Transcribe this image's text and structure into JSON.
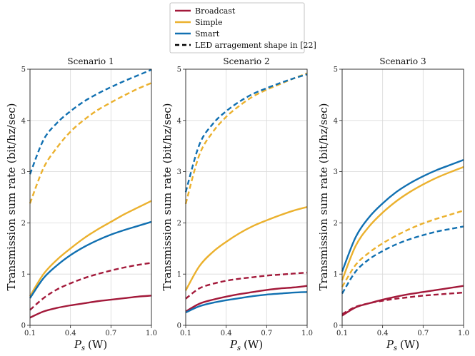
{
  "chart_data": {
    "type": "line",
    "legend": {
      "placement": "top-center",
      "entries": [
        {
          "label": "Broadcast",
          "color": "#A3193A",
          "dash": "solid"
        },
        {
          "label": "Simple",
          "color": "#EBB12E",
          "dash": "solid"
        },
        {
          "label": "Smart",
          "color": "#1170B1",
          "dash": "solid"
        },
        {
          "label": "LED arragement shape in [22]",
          "color": "#000000",
          "dash": "dashed"
        }
      ]
    },
    "shared": {
      "xlabel": "P_s (W)",
      "xlabel_main": "P",
      "xlabel_sub": "s",
      "xlabel_unit": "(W)",
      "ylabel": "Transmission sum rate (bit/hz/sec)",
      "xlim": [
        0.1,
        1.0
      ],
      "ylim": [
        0,
        5
      ],
      "xticks": [
        "0.1",
        "0.4",
        "0.7",
        "1.0"
      ],
      "yticks": [
        "0",
        "1",
        "2",
        "3",
        "4",
        "5"
      ],
      "x": [
        0.1,
        0.2,
        0.3,
        0.4,
        0.5,
        0.6,
        0.7,
        0.8,
        0.9,
        1.0
      ],
      "grid": true
    },
    "panels": [
      {
        "title": "Scenario 1",
        "series": [
          {
            "name": "Broadcast",
            "color": "#A3193A",
            "dash": "solid",
            "values": [
              0.15,
              0.27,
              0.34,
              0.39,
              0.43,
              0.47,
              0.5,
              0.53,
              0.56,
              0.58
            ]
          },
          {
            "name": "Broadcast (LED arrangement [22])",
            "color": "#A3193A",
            "dash": "dashed",
            "values": [
              0.3,
              0.53,
              0.7,
              0.82,
              0.92,
              1.0,
              1.07,
              1.13,
              1.18,
              1.22
            ]
          },
          {
            "name": "Simple",
            "color": "#EBB12E",
            "dash": "solid",
            "values": [
              0.57,
              1.0,
              1.28,
              1.5,
              1.7,
              1.87,
              2.02,
              2.17,
              2.3,
              2.43
            ]
          },
          {
            "name": "Simple (LED arrangement [22])",
            "color": "#EBB12E",
            "dash": "dashed",
            "values": [
              2.38,
              3.07,
              3.47,
              3.78,
              4.01,
              4.2,
              4.35,
              4.49,
              4.62,
              4.73
            ]
          },
          {
            "name": "Smart",
            "color": "#1170B1",
            "dash": "solid",
            "values": [
              0.53,
              0.92,
              1.17,
              1.37,
              1.53,
              1.66,
              1.77,
              1.86,
              1.94,
              2.02
            ]
          },
          {
            "name": "Smart (LED arrangement [22])",
            "color": "#1170B1",
            "dash": "dashed",
            "values": [
              2.95,
              3.62,
              3.95,
              4.18,
              4.37,
              4.52,
              4.65,
              4.77,
              4.88,
              4.99
            ]
          }
        ]
      },
      {
        "title": "Scenario 2",
        "series": [
          {
            "name": "Broadcast",
            "color": "#A3193A",
            "dash": "solid",
            "values": [
              0.27,
              0.42,
              0.5,
              0.56,
              0.61,
              0.65,
              0.69,
              0.72,
              0.74,
              0.77
            ]
          },
          {
            "name": "Broadcast (LED arrangement [22])",
            "color": "#A3193A",
            "dash": "dashed",
            "values": [
              0.52,
              0.72,
              0.81,
              0.87,
              0.91,
              0.94,
              0.97,
              0.99,
              1.01,
              1.03
            ]
          },
          {
            "name": "Simple",
            "color": "#EBB12E",
            "dash": "solid",
            "values": [
              0.68,
              1.15,
              1.43,
              1.63,
              1.8,
              1.94,
              2.05,
              2.15,
              2.24,
              2.31
            ]
          },
          {
            "name": "Simple (LED arrangement [22])",
            "color": "#EBB12E",
            "dash": "dashed",
            "values": [
              2.37,
              3.32,
              3.77,
              4.07,
              4.29,
              4.47,
              4.6,
              4.71,
              4.82,
              4.92
            ]
          },
          {
            "name": "Smart",
            "color": "#1170B1",
            "dash": "solid",
            "values": [
              0.25,
              0.37,
              0.44,
              0.49,
              0.53,
              0.57,
              0.6,
              0.62,
              0.64,
              0.65
            ]
          },
          {
            "name": "Smart (LED arrangement [22])",
            "color": "#1170B1",
            "dash": "dashed",
            "values": [
              2.6,
              3.52,
              3.93,
              4.18,
              4.37,
              4.52,
              4.63,
              4.73,
              4.82,
              4.9
            ]
          }
        ]
      },
      {
        "title": "Scenario 3",
        "series": [
          {
            "name": "Broadcast",
            "color": "#A3193A",
            "dash": "solid",
            "values": [
              0.19,
              0.35,
              0.43,
              0.5,
              0.56,
              0.61,
              0.65,
              0.69,
              0.73,
              0.77
            ]
          },
          {
            "name": "Broadcast (LED arrangement [22])",
            "color": "#A3193A",
            "dash": "dashed",
            "values": [
              0.22,
              0.36,
              0.43,
              0.48,
              0.52,
              0.55,
              0.58,
              0.6,
              0.62,
              0.64
            ]
          },
          {
            "name": "Simple",
            "color": "#EBB12E",
            "dash": "solid",
            "values": [
              0.88,
              1.55,
              1.93,
              2.2,
              2.42,
              2.6,
              2.75,
              2.88,
              2.99,
              3.09
            ]
          },
          {
            "name": "Simple (LED arrangement [22])",
            "color": "#EBB12E",
            "dash": "dashed",
            "values": [
              0.75,
              1.18,
              1.42,
              1.6,
              1.75,
              1.88,
              1.99,
              2.08,
              2.16,
              2.24
            ]
          },
          {
            "name": "Smart",
            "color": "#1170B1",
            "dash": "solid",
            "values": [
              1.05,
              1.72,
              2.11,
              2.38,
              2.6,
              2.77,
              2.91,
              3.03,
              3.13,
              3.23
            ]
          },
          {
            "name": "Smart (LED arrangement [22])",
            "color": "#1170B1",
            "dash": "dashed",
            "values": [
              0.62,
              1.05,
              1.29,
              1.45,
              1.58,
              1.68,
              1.76,
              1.83,
              1.88,
              1.93
            ]
          }
        ]
      }
    ]
  }
}
